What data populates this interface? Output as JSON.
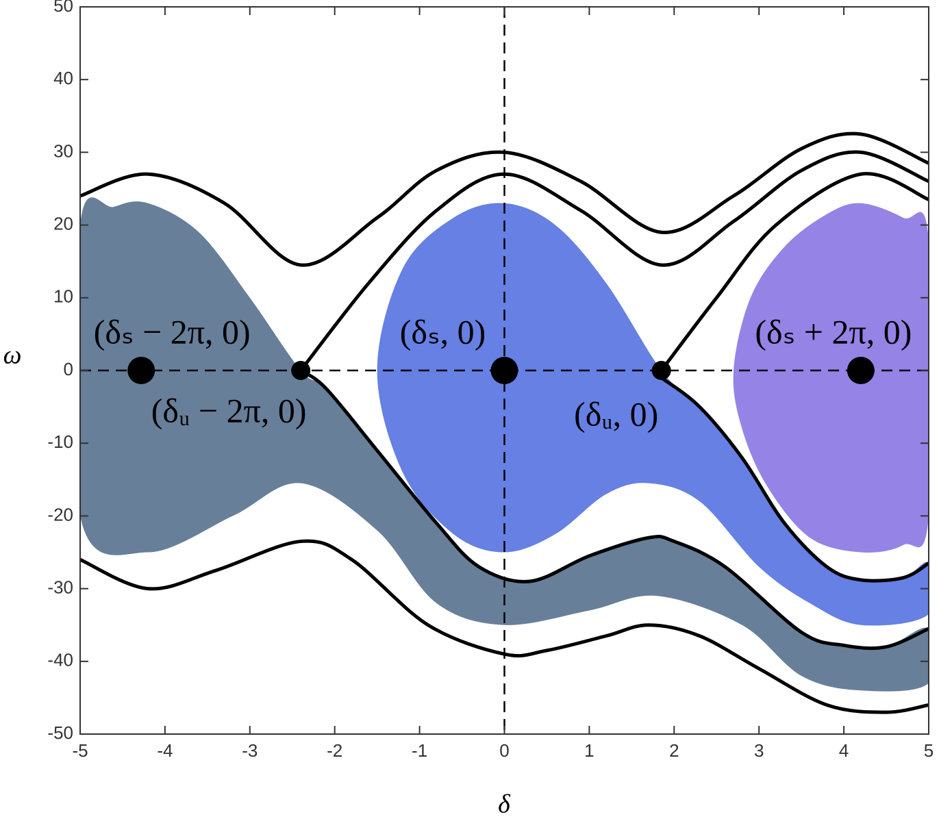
{
  "chart_data": {
    "type": "line",
    "xlabel": "δ",
    "ylabel": "ω",
    "xlim": [
      -5,
      5
    ],
    "ylim": [
      -50,
      50
    ],
    "xticks": [
      -5,
      -4,
      -3,
      -2,
      -1,
      0,
      1,
      2,
      3,
      4,
      5
    ],
    "yticks": [
      -50,
      -40,
      -30,
      -20,
      -10,
      0,
      10,
      20,
      30,
      40,
      50
    ],
    "reference_lines": {
      "x": 0,
      "y": 0
    },
    "regions": [
      {
        "color": "#687f9a",
        "x": [
          -5,
          -4.6,
          -4.2,
          -3.6,
          -3,
          -2.4,
          -2.1,
          -1.5,
          -0.8,
          -0.3,
          0.3,
          1.0,
          1.7,
          2.0,
          2.6,
          3.5,
          4.0,
          4.5,
          5,
          5,
          4.2,
          3.5,
          2.8,
          1.8,
          1,
          0,
          -0.8,
          -1.5,
          -2.4,
          -3.2,
          -4.2,
          -5
        ],
        "values": [
          20,
          22.5,
          23,
          19,
          10,
          0,
          -2.5,
          -11,
          -21,
          -27,
          -29,
          -25.5,
          -23,
          -23.5,
          -27,
          -36,
          -37.8,
          -38,
          -35.5,
          -43,
          -44,
          -42,
          -35,
          -31,
          -33,
          -35,
          -32,
          -22,
          -15.5,
          -20,
          -25,
          -20
        ]
      },
      {
        "color": "#6680e3",
        "x": [
          -1.5,
          -1.2,
          -0.6,
          0,
          0.6,
          1.2,
          1.85,
          2.3,
          2.8,
          3.3,
          3.8,
          4.2,
          4.7,
          5,
          5,
          4.2,
          3.6,
          3,
          2.3,
          1.7,
          1.2,
          0.6,
          0,
          -0.6,
          -1.2
        ],
        "values": [
          0,
          14,
          21,
          23,
          20,
          12,
          0,
          -5,
          -12,
          -21,
          -27,
          -28.8,
          -28.5,
          -26.5,
          -33.5,
          -35,
          -32,
          -27,
          -18,
          -15.5,
          -17,
          -22.5,
          -25,
          -22.5,
          -14
        ]
      },
      {
        "color": "#9683e6",
        "x": [
          2.7,
          2.9,
          3.3,
          3.8,
          4.2,
          4.7,
          5,
          5,
          4.7,
          4.2,
          3.6,
          3.1,
          2.8
        ],
        "values": [
          0,
          10,
          17,
          21.5,
          23,
          21,
          18,
          -20,
          -24,
          -25,
          -23,
          -16,
          -8
        ]
      }
    ],
    "series": [
      {
        "color": "#000000",
        "x": [
          -5,
          -4.2,
          -3.3,
          -2.4,
          -1.5,
          -0.8,
          0,
          0.9,
          1.85,
          2.7,
          3.5,
          4.2,
          5
        ],
        "values": [
          24,
          27,
          23,
          14.5,
          21,
          27.5,
          30,
          26,
          19,
          24,
          30.5,
          32.5,
          28.5
        ]
      },
      {
        "color": "#000000",
        "x": [
          -2.4,
          -1.6,
          -0.8,
          0,
          0.9,
          1.85,
          2.7,
          3.5,
          4.2,
          5
        ],
        "values": [
          0,
          12,
          22,
          27,
          22,
          14.5,
          20.5,
          27.5,
          30,
          26
        ]
      },
      {
        "color": "#000000",
        "x": [
          1.85,
          2.5,
          3.2,
          4.2,
          5
        ],
        "values": [
          0,
          10,
          20,
          27,
          23.5
        ]
      },
      {
        "color": "#000000",
        "x": [
          -2.4,
          -2.1,
          -1.5,
          -0.8,
          -0.3,
          0.3,
          1.0,
          1.7,
          2.0,
          2.6,
          3.5,
          4.0,
          4.5,
          5
        ],
        "values": [
          0,
          -2.5,
          -11,
          -21,
          -27,
          -29,
          -25.5,
          -23,
          -23.5,
          -27,
          -36,
          -37.8,
          -38,
          -35.5
        ]
      },
      {
        "color": "#000000",
        "x": [
          -5,
          -4.2,
          -3.4,
          -2.4,
          -1.8,
          -0.9,
          0,
          0.5,
          1.2,
          1.7,
          2.3,
          3,
          3.8,
          4.5,
          5
        ],
        "values": [
          -26,
          -30,
          -27.5,
          -23.5,
          -26,
          -35,
          -39,
          -38.5,
          -36.5,
          -35,
          -36.5,
          -41,
          -46,
          -47,
          -46
        ]
      },
      {
        "color": "#000000",
        "x": [
          1.85,
          2.3,
          2.8,
          3.3,
          3.8,
          4.2,
          4.7,
          5
        ],
        "values": [
          -1,
          -5,
          -12,
          -21,
          -27,
          -28.8,
          -28.5,
          -26.5
        ]
      }
    ],
    "points": [
      {
        "x": -4.28,
        "y": 0,
        "marker_size": 20,
        "label": "(δₛ − 2π, 0)"
      },
      {
        "x": -2.4,
        "y": 0,
        "marker_size": 14,
        "label": "(δᵤ − 2π, 0)"
      },
      {
        "x": 0,
        "y": 0,
        "marker_size": 20,
        "label": "(δₛ, 0)"
      },
      {
        "x": 1.85,
        "y": 0,
        "marker_size": 14,
        "label": "(δᵤ, 0)"
      },
      {
        "x": 4.2,
        "y": 0,
        "marker_size": 20,
        "label": "(δₛ + 2π, 0)"
      }
    ]
  }
}
